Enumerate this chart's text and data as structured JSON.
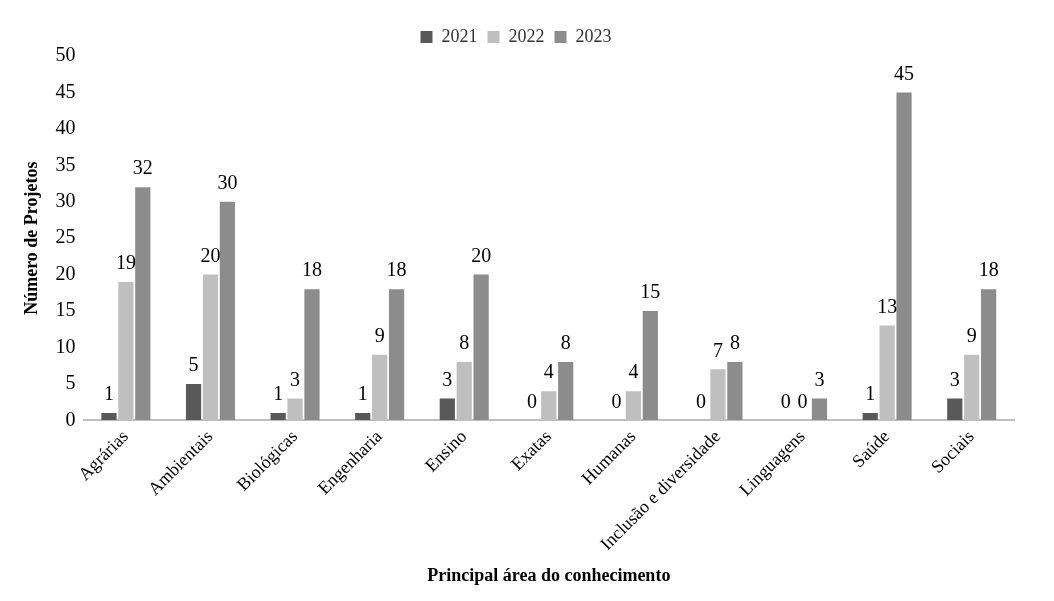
{
  "chart_data": {
    "type": "bar",
    "xlabel": "Principal área do conhecimento",
    "ylabel": "Número de Projetos",
    "categories": [
      "Agrárias",
      "Ambientais",
      "Biológicas",
      "Engenharia",
      "Ensino",
      "Exatas",
      "Humanas",
      "Inclusão e diversidade",
      "Linguagens",
      "Saúde",
      "Sociais"
    ],
    "series": [
      {
        "name": "2021",
        "color": "#595959",
        "values": [
          1,
          5,
          1,
          1,
          3,
          0,
          0,
          0,
          0,
          1,
          3
        ]
      },
      {
        "name": "2022",
        "color": "#bfbfbf",
        "values": [
          19,
          20,
          3,
          9,
          8,
          4,
          4,
          7,
          0,
          13,
          9
        ]
      },
      {
        "name": "2023",
        "color": "#8c8c8c",
        "values": [
          32,
          30,
          18,
          18,
          20,
          8,
          15,
          8,
          3,
          45,
          18
        ]
      }
    ],
    "ylim": [
      0,
      50
    ],
    "yticks": [
      0,
      5,
      10,
      15,
      20,
      25,
      30,
      35,
      40,
      45,
      50
    ],
    "grid": false,
    "legend": "top",
    "data_labels": true
  }
}
